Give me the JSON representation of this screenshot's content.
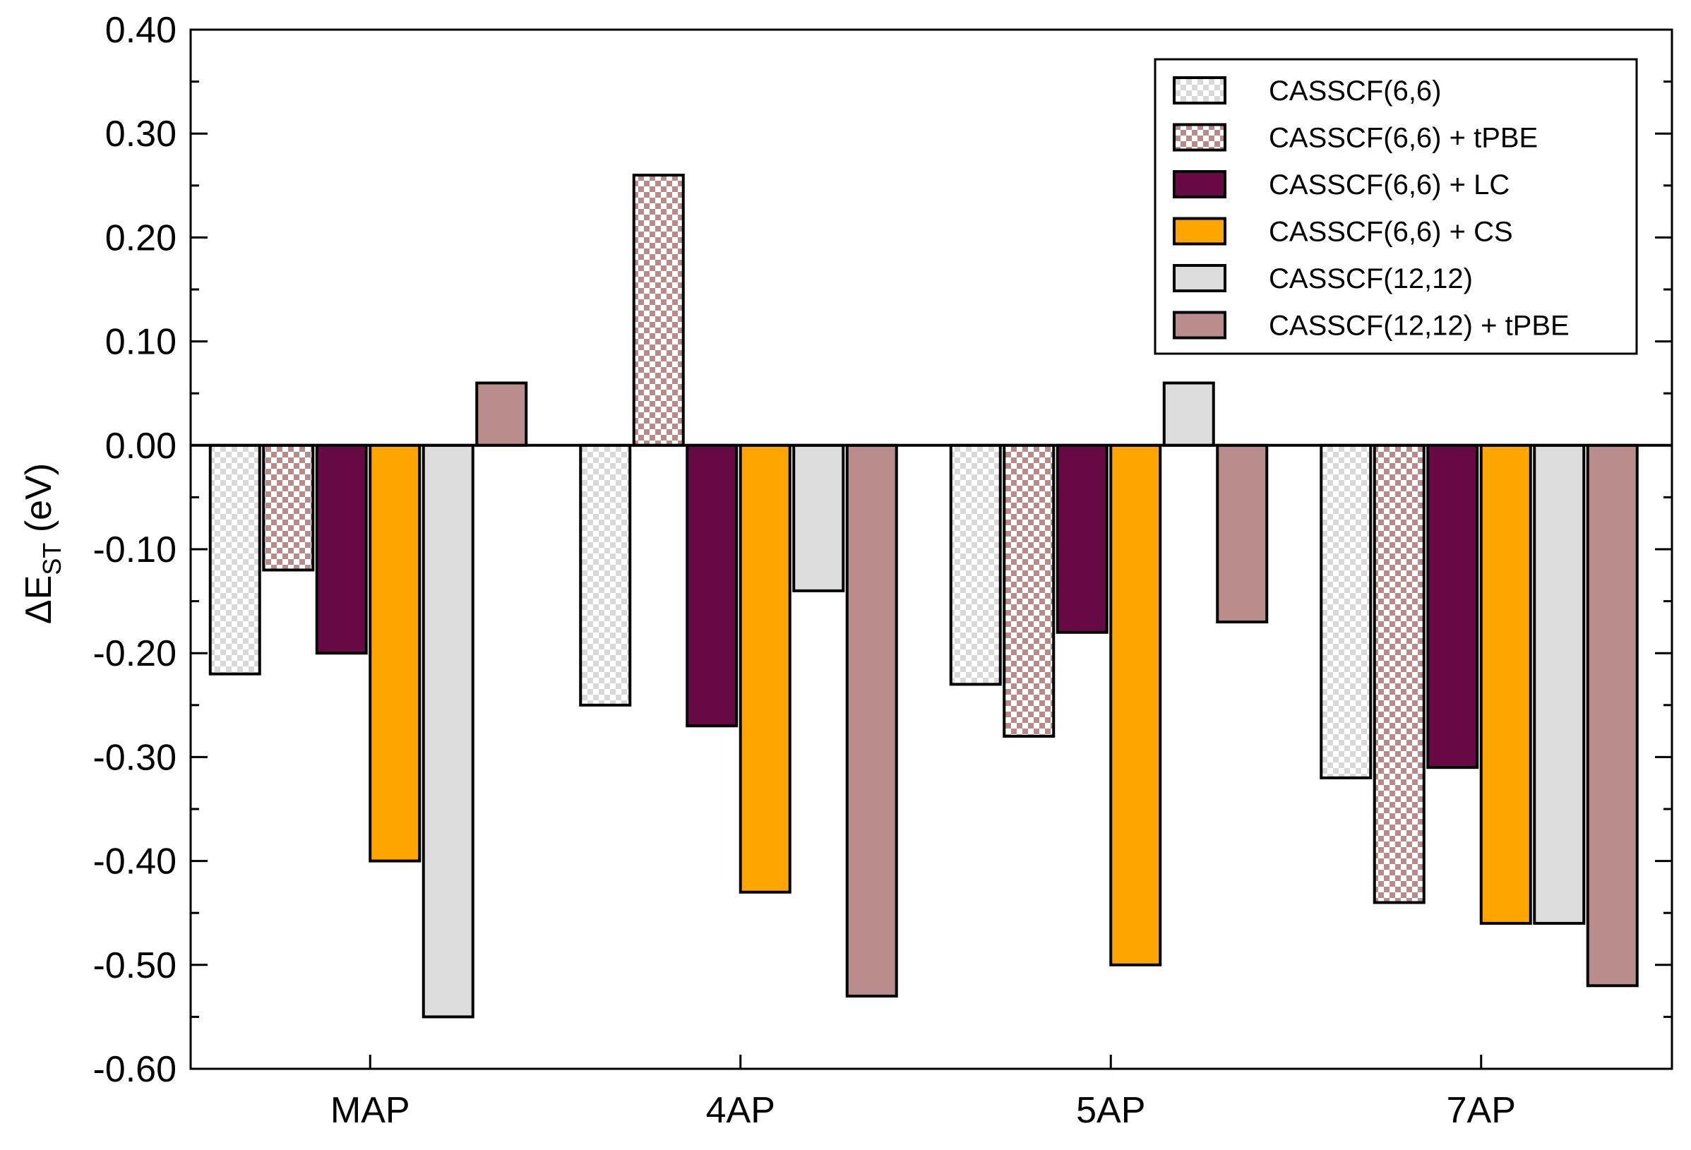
{
  "chart_data": {
    "type": "bar",
    "title": "",
    "xlabel": "",
    "ylabel": {
      "prefix": "ΔE",
      "subscript": "ST",
      "suffix": " (eV)"
    },
    "ylim": [
      -0.6,
      0.4
    ],
    "yticks": [
      "0.40",
      "0.30",
      "0.20",
      "0.10",
      "0.00",
      "-0.10",
      "-0.20",
      "-0.30",
      "-0.40",
      "-0.50",
      "-0.60"
    ],
    "categories": [
      "MAP",
      "4AP",
      "5AP",
      "7AP"
    ],
    "legend_position": "top-right",
    "series": [
      {
        "name": "CASSCF(6,6)",
        "color": "#e0e0e0",
        "pattern": "checker",
        "values": [
          -0.22,
          -0.25,
          -0.23,
          -0.32
        ]
      },
      {
        "name": "CASSCF(6,6) + tPBE",
        "color": "#b88b8b",
        "pattern": "checker",
        "values": [
          -0.12,
          0.26,
          -0.28,
          -0.44
        ]
      },
      {
        "name": "CASSCF(6,6) + LC",
        "color": "#670a44",
        "pattern": "solid",
        "values": [
          -0.2,
          -0.27,
          -0.18,
          -0.31
        ]
      },
      {
        "name": "CASSCF(6,6) + CS",
        "color": "#ffa500",
        "pattern": "solid",
        "values": [
          -0.4,
          -0.43,
          -0.5,
          -0.46
        ]
      },
      {
        "name": "CASSCF(12,12)",
        "color": "#dcdcdc",
        "pattern": "solid",
        "values": [
          -0.55,
          -0.14,
          0.06,
          -0.46
        ]
      },
      {
        "name": "CASSCF(12,12) + tPBE",
        "color": "#bb8c8c",
        "pattern": "solid",
        "values": [
          0.06,
          -0.53,
          -0.17,
          -0.52
        ]
      }
    ]
  }
}
